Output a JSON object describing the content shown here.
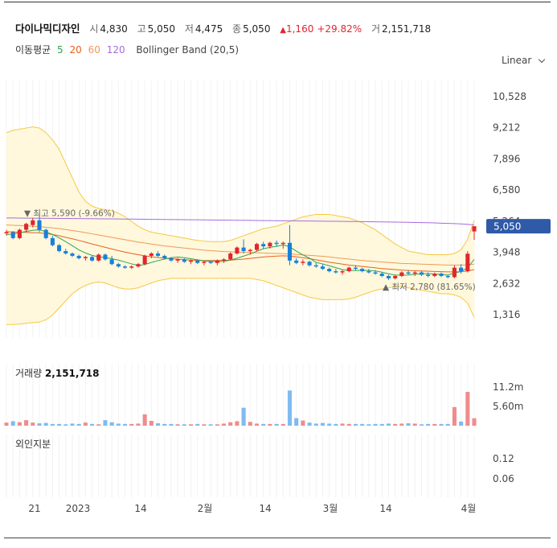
{
  "header": {
    "name": "다이나믹디자인",
    "open_label": "시",
    "open": "4,830",
    "high_label": "고",
    "high": "5,050",
    "low_label": "저",
    "low": "4,475",
    "close_label": "종",
    "close": "5,050",
    "change_arrow": "▲",
    "change": "1,160",
    "change_pct": "+29.82%",
    "volume_label": "거",
    "volume": "2,151,718"
  },
  "ma_legend": {
    "title": "이동평균",
    "p5": "5",
    "p20": "20",
    "p60": "60",
    "p120": "120",
    "bollinger": "Bollinger Band (20,5)"
  },
  "scale_button": "Linear",
  "colors": {
    "up": "#e2262d",
    "down": "#1a7fd9",
    "up_vol": "#f08c8c",
    "down_vol": "#7fbbf0",
    "ma5": "#2ea44f",
    "ma20": "#e8611e",
    "ma60": "#f0985a",
    "ma120": "#a66be0",
    "band_fill": "#fff8dc",
    "band_line": "#f5c842",
    "price_tag": "#2f5aa8"
  },
  "chart_data": {
    "type": "candlestick",
    "price_axis": {
      "ticks": [
        "10,528",
        "9,212",
        "7,896",
        "6,580",
        "5,264",
        "3,948",
        "2,632",
        "1,316"
      ],
      "ylim": [
        400,
        11200
      ]
    },
    "current_price_label": "5,050",
    "high_annotation": "▼ 최고 5,590 (-9.66%)",
    "low_annotation": "▲ 최저 2,780 (81.65%)",
    "volume_title": "거래량",
    "volume_value": "2,151,718",
    "volume_ticks": [
      "11.2m",
      "5.60m"
    ],
    "foreign_title": "외인지분",
    "foreign_ticks": [
      "0.12",
      "0.06"
    ],
    "x_labels": [
      "21",
      "2023",
      "14",
      "2월",
      "14",
      "3월",
      "14",
      "4월"
    ],
    "candles": [
      [
        4750,
        4900,
        4650,
        4800
      ],
      [
        4800,
        4850,
        4500,
        4550
      ],
      [
        4550,
        4950,
        4500,
        4900
      ],
      [
        4900,
        5200,
        4800,
        5150
      ],
      [
        5100,
        5400,
        5000,
        5300
      ],
      [
        5300,
        5590,
        4800,
        4900
      ],
      [
        4900,
        4950,
        4500,
        4550
      ],
      [
        4550,
        4650,
        4200,
        4250
      ],
      [
        4250,
        4300,
        3950,
        4000
      ],
      [
        4000,
        4100,
        3850,
        3900
      ],
      [
        3900,
        3950,
        3750,
        3800
      ],
      [
        3800,
        3850,
        3650,
        3700
      ],
      [
        3700,
        3800,
        3600,
        3750
      ],
      [
        3750,
        3800,
        3550,
        3600
      ],
      [
        3600,
        3900,
        3550,
        3850
      ],
      [
        3850,
        3900,
        3600,
        3650
      ],
      [
        3650,
        3800,
        3400,
        3450
      ],
      [
        3450,
        3500,
        3300,
        3350
      ],
      [
        3350,
        3400,
        3250,
        3300
      ],
      [
        3300,
        3400,
        3250,
        3350
      ],
      [
        3350,
        3500,
        3300,
        3450
      ],
      [
        3450,
        3850,
        3400,
        3800
      ],
      [
        3800,
        3950,
        3700,
        3900
      ],
      [
        3900,
        4000,
        3750,
        3800
      ],
      [
        3800,
        3850,
        3650,
        3700
      ],
      [
        3700,
        3750,
        3550,
        3600
      ],
      [
        3600,
        3700,
        3500,
        3650
      ],
      [
        3650,
        3700,
        3500,
        3550
      ],
      [
        3550,
        3650,
        3450,
        3600
      ],
      [
        3600,
        3650,
        3450,
        3500
      ],
      [
        3500,
        3600,
        3400,
        3550
      ],
      [
        3550,
        3600,
        3450,
        3500
      ],
      [
        3500,
        3650,
        3400,
        3600
      ],
      [
        3600,
        3700,
        3500,
        3650
      ],
      [
        3650,
        3950,
        3600,
        3900
      ],
      [
        3900,
        4200,
        3850,
        4150
      ],
      [
        4150,
        4500,
        3900,
        4000
      ],
      [
        4000,
        4100,
        3850,
        4050
      ],
      [
        4050,
        4350,
        4000,
        4300
      ],
      [
        4300,
        4400,
        4100,
        4200
      ],
      [
        4200,
        4400,
        4100,
        4350
      ],
      [
        4350,
        4450,
        4200,
        4300
      ],
      [
        4300,
        4400,
        4100,
        4350
      ],
      [
        4350,
        5100,
        3400,
        3600
      ],
      [
        3600,
        3700,
        3450,
        3500
      ],
      [
        3500,
        3650,
        3400,
        3550
      ],
      [
        3550,
        3600,
        3350,
        3400
      ],
      [
        3400,
        3500,
        3300,
        3350
      ],
      [
        3350,
        3450,
        3200,
        3250
      ],
      [
        3250,
        3300,
        3100,
        3150
      ],
      [
        3150,
        3250,
        3050,
        3100
      ],
      [
        3100,
        3200,
        3000,
        3150
      ],
      [
        3150,
        3350,
        3100,
        3300
      ],
      [
        3300,
        3400,
        3200,
        3250
      ],
      [
        3250,
        3300,
        3100,
        3150
      ],
      [
        3150,
        3250,
        3050,
        3100
      ],
      [
        3100,
        3200,
        3000,
        3050
      ],
      [
        3050,
        3100,
        2900,
        2950
      ],
      [
        2950,
        3000,
        2780,
        2850
      ],
      [
        2850,
        3000,
        2800,
        2950
      ],
      [
        2950,
        3150,
        2900,
        3100
      ],
      [
        3100,
        3200,
        3000,
        3050
      ],
      [
        3050,
        3150,
        2950,
        3100
      ],
      [
        3100,
        3150,
        2950,
        3000
      ],
      [
        3000,
        3100,
        2900,
        2950
      ],
      [
        2950,
        3100,
        2900,
        3050
      ],
      [
        3050,
        3100,
        2900,
        2950
      ],
      [
        2950,
        3000,
        2850,
        2900
      ],
      [
        2900,
        3400,
        2850,
        3300
      ],
      [
        3300,
        3450,
        3050,
        3150
      ],
      [
        3150,
        4000,
        3100,
        3890
      ],
      [
        4830,
        5050,
        4475,
        5050
      ]
    ],
    "volumes_m": [
      0.9,
      1.3,
      1.0,
      1.6,
      0.9,
      0.7,
      0.8,
      0.5,
      0.5,
      0.4,
      0.6,
      0.5,
      0.9,
      0.5,
      0.4,
      1.6,
      1.0,
      0.6,
      0.5,
      0.5,
      0.6,
      3.3,
      1.4,
      0.7,
      0.5,
      0.5,
      0.4,
      0.4,
      0.4,
      0.5,
      0.4,
      0.4,
      0.4,
      0.6,
      1.0,
      1.3,
      5.2,
      1.1,
      0.6,
      0.5,
      0.5,
      0.5,
      0.5,
      10.2,
      2.2,
      1.5,
      0.9,
      0.6,
      0.8,
      0.6,
      0.5,
      0.6,
      0.5,
      0.5,
      0.5,
      0.4,
      0.5,
      0.5,
      0.6,
      0.5,
      0.6,
      0.7,
      0.6,
      0.4,
      0.5,
      0.5,
      0.5,
      0.5,
      5.4,
      1.2,
      9.8,
      2.15
    ],
    "ma5": [
      4700,
      4720,
      4780,
      4830,
      4880,
      4900,
      4820,
      4700,
      4560,
      4400,
      4230,
      4050,
      3920,
      3820,
      3760,
      3730,
      3680,
      3620,
      3540,
      3460,
      3400,
      3430,
      3520,
      3600,
      3660,
      3720,
      3750,
      3720,
      3680,
      3630,
      3590,
      3570,
      3560,
      3570,
      3620,
      3700,
      3790,
      3880,
      3990,
      4100,
      4160,
      4200,
      4260,
      4180,
      4000,
      3840,
      3700,
      3520,
      3460,
      3380,
      3300,
      3220,
      3180,
      3180,
      3190,
      3180,
      3160,
      3110,
      3040,
      2990,
      2980,
      2990,
      3020,
      3040,
      3050,
      3030,
      3010,
      2990,
      3070,
      3140,
      3300,
      3650
    ],
    "ma20": [
      4820,
      4810,
      4800,
      4790,
      4780,
      4770,
      4740,
      4700,
      4650,
      4580,
      4520,
      4450,
      4380,
      4300,
      4230,
      4160,
      4090,
      4020,
      3960,
      3900,
      3850,
      3800,
      3760,
      3730,
      3700,
      3680,
      3660,
      3640,
      3620,
      3610,
      3600,
      3600,
      3600,
      3610,
      3620,
      3640,
      3660,
      3690,
      3720,
      3750,
      3770,
      3790,
      3800,
      3790,
      3760,
      3720,
      3680,
      3630,
      3580,
      3530,
      3490,
      3450,
      3410,
      3380,
      3350,
      3320,
      3290,
      3260,
      3240,
      3220,
      3200,
      3180,
      3170,
      3160,
      3150,
      3140,
      3130,
      3120,
      3120,
      3130,
      3160,
      3220
    ],
    "ma60": [
      5100,
      5090,
      5080,
      5070,
      5050,
      5030,
      5010,
      4980,
      4950,
      4910,
      4870,
      4830,
      4780,
      4730,
      4680,
      4630,
      4580,
      4530,
      4480,
      4430,
      4380,
      4340,
      4300,
      4260,
      4220,
      4190,
      4160,
      4130,
      4100,
      4070,
      4040,
      4020,
      4000,
      3980,
      3970,
      3960,
      3950,
      3940,
      3930,
      3920,
      3910,
      3900,
      3890,
      3880,
      3860,
      3840,
      3820,
      3800,
      3780,
      3750,
      3720,
      3690,
      3660,
      3630,
      3600,
      3580,
      3560,
      3540,
      3520,
      3500,
      3480,
      3470,
      3460,
      3450,
      3440,
      3430,
      3420,
      3410,
      3410,
      3410,
      3420,
      3450
    ],
    "ma120": [
      5400,
      5398,
      5395,
      5392,
      5390,
      5388,
      5385,
      5382,
      5380,
      5378,
      5375,
      5372,
      5370,
      5368,
      5365,
      5362,
      5360,
      5357,
      5354,
      5351,
      5348,
      5345,
      5342,
      5339,
      5336,
      5333,
      5330,
      5327,
      5324,
      5321,
      5318,
      5315,
      5312,
      5309,
      5306,
      5303,
      5300,
      5297,
      5294,
      5291,
      5288,
      5285,
      5282,
      5279,
      5276,
      5273,
      5270,
      5267,
      5264,
      5261,
      5258,
      5255,
      5252,
      5249,
      5246,
      5243,
      5240,
      5235,
      5230,
      5225,
      5220,
      5215,
      5210,
      5205,
      5200,
      5190,
      5180,
      5170,
      5160,
      5150,
      5130,
      5100
    ],
    "bb_upper": [
      9000,
      9100,
      9150,
      9200,
      9250,
      9200,
      9000,
      8700,
      8300,
      7700,
      7100,
      6500,
      6100,
      5900,
      5800,
      5750,
      5700,
      5600,
      5450,
      5250,
      5050,
      4900,
      4800,
      4750,
      4700,
      4650,
      4600,
      4550,
      4500,
      4450,
      4420,
      4400,
      4400,
      4400,
      4450,
      4550,
      4650,
      4750,
      4850,
      4950,
      5000,
      5050,
      5150,
      5250,
      5350,
      5450,
      5500,
      5550,
      5550,
      5550,
      5500,
      5450,
      5400,
      5300,
      5200,
      5050,
      4900,
      4700,
      4500,
      4300,
      4150,
      4000,
      3950,
      3900,
      3850,
      3850,
      3850,
      3850,
      3900,
      4050,
      4500,
      5300
    ],
    "bb_lower": [
      900,
      900,
      920,
      950,
      980,
      1000,
      1100,
      1300,
      1600,
      1900,
      2200,
      2400,
      2550,
      2650,
      2700,
      2650,
      2550,
      2450,
      2400,
      2400,
      2450,
      2550,
      2650,
      2750,
      2800,
      2850,
      2850,
      2850,
      2850,
      2850,
      2850,
      2850,
      2850,
      2850,
      2850,
      2850,
      2850,
      2850,
      2800,
      2750,
      2650,
      2550,
      2450,
      2350,
      2250,
      2150,
      2050,
      2000,
      1950,
      1950,
      1950,
      1950,
      1980,
      2050,
      2150,
      2250,
      2350,
      2400,
      2450,
      2500,
      2500,
      2450,
      2400,
      2350,
      2300,
      2250,
      2200,
      2200,
      2150,
      2050,
      1800,
      1200
    ]
  }
}
